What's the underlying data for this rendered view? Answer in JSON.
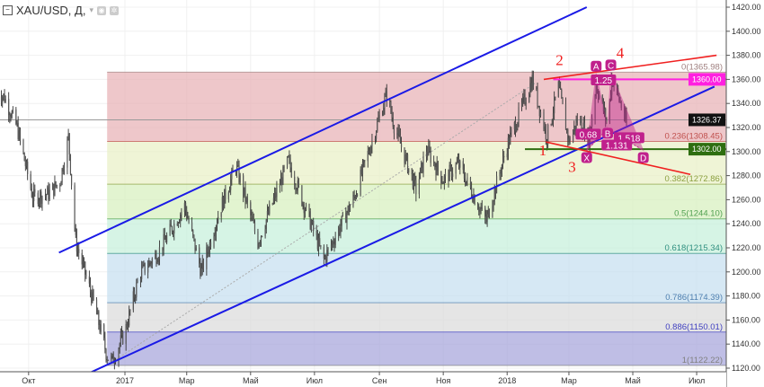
{
  "header": {
    "symbol": "XAU/USD, Д,",
    "icons": [
      "collapse-icon",
      "dropdown-caret-icon",
      "eye-icon",
      "gear-icon"
    ]
  },
  "chart_data": {
    "type": "candlestick",
    "title": "XAU/USD, Д,",
    "ylim": [
      1120,
      1420
    ],
    "xlim": [
      "2016-09-01",
      "2018-07-28"
    ],
    "y_ticks": [
      "1420.00",
      "1400.00",
      "1380.00",
      "1360.00",
      "1340.00",
      "1320.00",
      "1300.00",
      "1280.00",
      "1260.00",
      "1240.00",
      "1220.00",
      "1200.00",
      "1180.00",
      "1160.00",
      "1140.00",
      "1120.00"
    ],
    "x_ticks": [
      {
        "label": "Окт",
        "date": "2016-10-01"
      },
      {
        "label": "2017",
        "date": "2017-01-01"
      },
      {
        "label": "Мар",
        "date": "2017-03-01"
      },
      {
        "label": "Май",
        "date": "2017-05-01"
      },
      {
        "label": "Июл",
        "date": "2017-07-01"
      },
      {
        "label": "Сен",
        "date": "2017-09-01"
      },
      {
        "label": "Ноя",
        "date": "2017-11-01"
      },
      {
        "label": "2018",
        "date": "2018-01-01"
      },
      {
        "label": "Мар",
        "date": "2018-03-01"
      },
      {
        "label": "Май",
        "date": "2018-05-01"
      },
      {
        "label": "Июл",
        "date": "2018-07-01"
      }
    ],
    "price_path": [
      [
        "2016-09-01",
        1350
      ],
      [
        "2016-09-08",
        1345
      ],
      [
        "2016-09-20",
        1320
      ],
      [
        "2016-10-05",
        1262
      ],
      [
        "2016-10-20",
        1265
      ],
      [
        "2016-10-31",
        1275
      ],
      [
        "2016-11-08",
        1312
      ],
      [
        "2016-11-15",
        1225
      ],
      [
        "2016-12-01",
        1178
      ],
      [
        "2016-12-15",
        1130
      ],
      [
        "2016-12-20",
        1126
      ],
      [
        "2017-01-01",
        1150
      ],
      [
        "2017-01-15",
        1198
      ],
      [
        "2017-02-01",
        1215
      ],
      [
        "2017-02-27",
        1255
      ],
      [
        "2017-03-15",
        1200
      ],
      [
        "2017-04-01",
        1250
      ],
      [
        "2017-04-17",
        1288
      ],
      [
        "2017-05-08",
        1225
      ],
      [
        "2017-06-06",
        1292
      ],
      [
        "2017-07-10",
        1210
      ],
      [
        "2017-08-08",
        1262
      ],
      [
        "2017-09-08",
        1348
      ],
      [
        "2017-09-15",
        1322
      ],
      [
        "2017-10-06",
        1268
      ],
      [
        "2017-10-16",
        1302
      ],
      [
        "2017-11-01",
        1276
      ],
      [
        "2017-11-15",
        1290
      ],
      [
        "2017-12-12",
        1242
      ],
      [
        "2018-01-01",
        1305
      ],
      [
        "2018-01-25",
        1360
      ],
      [
        "2018-02-08",
        1312
      ],
      [
        "2018-02-19",
        1354
      ],
      [
        "2018-03-01",
        1308
      ],
      [
        "2018-03-10",
        1328
      ],
      [
        "2018-03-20",
        1310
      ],
      [
        "2018-03-27",
        1356
      ],
      [
        "2018-04-07",
        1322
      ],
      [
        "2018-04-11",
        1362
      ],
      [
        "2018-04-20",
        1338
      ],
      [
        "2018-04-25",
        1322
      ]
    ],
    "current_price": {
      "value": 1326.37,
      "label": "1326.37"
    },
    "fibonacci": {
      "start": "2016-12-15",
      "levels": [
        {
          "ratio": 0,
          "price": 1365.98,
          "label": "0(1365.98)",
          "color": "#e8b4b8"
        },
        {
          "ratio": 0.236,
          "price": 1308.45,
          "label": "0.236(1308.45)",
          "color": "#e9f0c8"
        },
        {
          "ratio": 0.382,
          "price": 1272.86,
          "label": "0.382(1272.86)",
          "color": "#d8f0c0"
        },
        {
          "ratio": 0.5,
          "price": 1244.1,
          "label": "0.5(1244.10)",
          "color": "#c8f0dc"
        },
        {
          "ratio": 0.618,
          "price": 1215.34,
          "label": "0.618(1215.34)",
          "color": "#c8e0f0"
        },
        {
          "ratio": 0.786,
          "price": 1174.39,
          "label": "0.786(1174.39)",
          "color": "#dcdcdc"
        },
        {
          "ratio": 0.886,
          "price": 1150.01,
          "label": "0.886(1150.01)",
          "color": "#aaa8dc"
        },
        {
          "ratio": 1,
          "price": 1122.22,
          "label": "1(1122.22)",
          "color": null
        }
      ],
      "label_colors": {
        "0": "#a08080",
        "0.236": "#c0504d",
        "0.382": "#8ca040",
        "0.5": "#50a050",
        "0.618": "#309080",
        "0.786": "#5080b0",
        "0.886": "#4040c0",
        "1": "#808080"
      }
    },
    "channel_lines": [
      {
        "from": [
          "2016-10-30",
          1216
        ],
        "to": [
          "2018-03-18",
          1420
        ],
        "color": "#1a1ae6"
      },
      {
        "from": [
          "2016-11-28",
          1116
        ],
        "to": [
          "2018-07-18",
          1354
        ],
        "color": "#1a1ae6"
      }
    ],
    "trend_line": {
      "from": [
        "2016-12-18",
        1124
      ],
      "to": [
        "2018-01-28",
        1357
      ],
      "color": "#aaaaaa"
    },
    "wedge_lines": [
      {
        "from": [
          "2018-02-05",
          1360
        ],
        "to": [
          "2018-07-20",
          1380
        ],
        "color": "#f02020"
      },
      {
        "from": [
          "2018-02-07",
          1308
        ],
        "to": [
          "2018-06-25",
          1281
        ],
        "color": "#f02020"
      }
    ],
    "horizontal_levels": [
      {
        "price": 1360.0,
        "label": "1360.00",
        "from": "2018-02-14",
        "color": "#ff20e0"
      },
      {
        "price": 1302.0,
        "label": "1302.00",
        "from": "2018-01-18",
        "color": "#2e6e10"
      }
    ],
    "wave_labels": [
      {
        "text": "1",
        "date": "2018-02-04",
        "price": 1297
      },
      {
        "text": "2",
        "date": "2018-02-20",
        "price": 1372
      },
      {
        "text": "3",
        "date": "2018-03-04",
        "price": 1283
      },
      {
        "text": "4",
        "date": "2018-04-19",
        "price": 1378
      }
    ],
    "harmonic_pattern": {
      "color": "#c0208c",
      "points": [
        {
          "name": "X",
          "date": "2018-03-18",
          "price": 1301
        },
        {
          "name": "A",
          "date": "2018-03-27",
          "price": 1365
        },
        {
          "name": "B",
          "date": "2018-04-07",
          "price": 1319
        },
        {
          "name": "C",
          "date": "2018-04-10",
          "price": 1366
        },
        {
          "name": "D",
          "date": "2018-05-11",
          "price": 1301
        }
      ],
      "ratios": [
        {
          "text": "0.68",
          "between": [
            "X",
            "B"
          ]
        },
        {
          "text": "1.25",
          "between": [
            "A",
            "C"
          ]
        },
        {
          "text": "1.518",
          "between": [
            "B",
            "D"
          ]
        },
        {
          "text": "1.131",
          "between": [
            "X",
            "D"
          ]
        }
      ]
    }
  }
}
